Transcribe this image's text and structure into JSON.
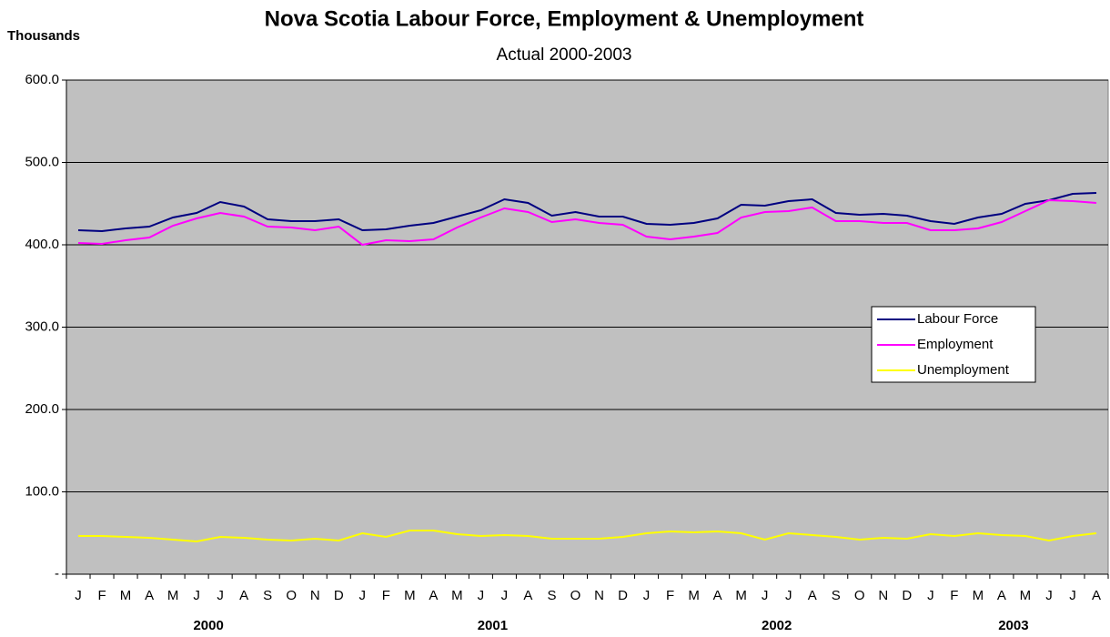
{
  "chart_data": {
    "type": "line",
    "title": "Nova Scotia Labour Force, Employment & Unemployment",
    "subtitle": "Actual 2000-2003",
    "y_axis_label": "Thousands",
    "categories": [
      "J",
      "F",
      "M",
      "A",
      "M",
      "J",
      "J",
      "A",
      "S",
      "O",
      "N",
      "D",
      "J",
      "F",
      "M",
      "A",
      "M",
      "J",
      "J",
      "A",
      "S",
      "O",
      "N",
      "D",
      "J",
      "F",
      "M",
      "A",
      "M",
      "J",
      "J",
      "A",
      "S",
      "O",
      "N",
      "D",
      "J",
      "F",
      "M",
      "A",
      "M",
      "J",
      "J",
      "A"
    ],
    "year_labels": [
      "2000",
      "2001",
      "2002",
      "2003"
    ],
    "series": [
      {
        "name": "Labour Force",
        "color": "#000080",
        "values": [
          417.7,
          416.6,
          419.9,
          422.1,
          433.1,
          438.7,
          451.9,
          446.4,
          430.9,
          428.7,
          428.7,
          430.9,
          417.7,
          418.8,
          423.2,
          426.5,
          434.3,
          442.0,
          455.2,
          450.8,
          435.4,
          439.8,
          434.3,
          434.3,
          425.4,
          424.3,
          426.5,
          432.0,
          448.6,
          447.5,
          453.0,
          455.2,
          438.7,
          436.5,
          437.6,
          435.4,
          428.7,
          425.4,
          433.1,
          437.6,
          449.7,
          454.1,
          461.9,
          463.0
        ]
      },
      {
        "name": "Employment",
        "color": "#ff00ff",
        "values": [
          402.2,
          401.1,
          405.5,
          408.8,
          423.2,
          432.0,
          438.7,
          434.3,
          422.1,
          421.0,
          417.7,
          422.1,
          400.0,
          405.5,
          404.4,
          406.6,
          421.0,
          433.1,
          444.2,
          439.8,
          427.6,
          430.9,
          426.5,
          424.3,
          409.9,
          406.6,
          409.9,
          414.4,
          433.1,
          439.8,
          440.9,
          445.3,
          428.7,
          428.7,
          426.5,
          426.5,
          417.7,
          417.7,
          419.9,
          427.6,
          440.9,
          454.1,
          453.0,
          450.8
        ]
      },
      {
        "name": "Unemployment",
        "color": "#ffff00",
        "values": [
          46.4,
          46.4,
          45.3,
          44.2,
          42.0,
          39.8,
          45.3,
          44.2,
          42.0,
          40.9,
          43.1,
          40.9,
          49.7,
          45.3,
          53.0,
          53.0,
          48.6,
          46.4,
          47.5,
          46.4,
          43.1,
          43.1,
          43.1,
          45.3,
          49.7,
          51.9,
          50.8,
          51.9,
          49.7,
          42.0,
          49.7,
          47.5,
          45.3,
          42.0,
          44.2,
          43.1,
          48.6,
          46.4,
          49.7,
          47.5,
          46.4,
          40.9,
          46.4,
          49.7
        ]
      }
    ],
    "ylim": [
      0,
      600
    ],
    "yticks": [
      {
        "value": 0,
        "label": "-"
      },
      {
        "value": 100,
        "label": "100.0"
      },
      {
        "value": 200,
        "label": "200.0"
      },
      {
        "value": 300,
        "label": "300.0"
      },
      {
        "value": 400,
        "label": "400.0"
      },
      {
        "value": 500,
        "label": "500.0"
      },
      {
        "value": 600,
        "label": "600.0"
      }
    ],
    "grid": true,
    "plot_background": "#c0c0c0"
  }
}
